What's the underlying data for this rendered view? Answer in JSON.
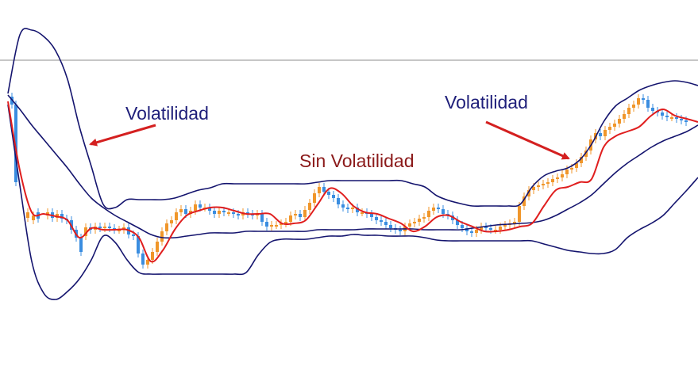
{
  "annotations": {
    "left": {
      "text": "Volatilidad"
    },
    "middle": {
      "text": "Sin Volatilidad"
    },
    "right": {
      "text": "Volatilidad"
    }
  },
  "colors": {
    "band": "#14146e",
    "moving_average": "#e01e1e",
    "candle_up": "#f0962a",
    "candle_down": "#3a8de0",
    "arrow": "#d42020",
    "price_line": "#8c8c8c"
  },
  "chart_data": {
    "type": "candlestick-with-bollinger-bands",
    "title": "",
    "xlabel": "",
    "ylabel": "",
    "grid": false,
    "horizontal_reference_line": true,
    "ylim": [
      0,
      462
    ],
    "x": [
      10,
      25,
      40,
      55,
      70,
      85,
      100,
      115,
      130,
      145,
      160,
      175,
      190,
      205,
      220,
      235,
      250,
      265,
      280,
      295,
      310,
      325,
      340,
      355,
      370,
      385,
      400,
      415,
      430,
      445,
      460,
      475,
      490,
      505,
      520,
      535,
      550,
      565,
      580,
      595,
      610,
      625,
      640,
      655,
      670,
      685,
      700,
      715,
      730,
      745,
      760,
      775,
      790,
      805,
      820,
      835,
      850,
      865,
      879
    ],
    "series": [
      {
        "values": [
          128,
          215,
          268,
          270,
          273,
          278,
          300,
          288,
          290,
          290,
          290,
          300,
          330,
          316,
          290,
          272,
          266,
          262,
          262,
          266,
          270,
          270,
          270,
          282,
          282,
          278,
          258,
          238,
          244,
          260,
          268,
          270,
          276,
          282,
          292,
          286,
          274,
          272,
          280,
          286,
          292,
          292,
          290,
          286,
          282,
          260,
          240,
          236,
          230,
          226,
          186,
          172,
          166,
          160,
          146,
          138,
          146,
          150,
          154
        ]
      },
      {
        "values": [
          120,
          138,
          158,
          176,
          194,
          212,
          232,
          250,
          262,
          272,
          280,
          288,
          296,
          300,
          300,
          298,
          296,
          294,
          294,
          294,
          292,
          292,
          292,
          292,
          292,
          292,
          290,
          290,
          290,
          290,
          289,
          289,
          289,
          289,
          289,
          290,
          290,
          290,
          290,
          288,
          286,
          284,
          283,
          282,
          281,
          278,
          272,
          264,
          256,
          246,
          232,
          218,
          206,
          196,
          186,
          178,
          172,
          166,
          158
        ]
      },
      {
        "values": [
          118,
          44,
          38,
          46,
          64,
          100,
          160,
          210,
          258,
          262,
          252,
          252,
          252,
          252,
          250,
          245,
          240,
          237,
          232,
          232,
          232,
          232,
          232,
          232,
          232,
          232,
          230,
          228,
          228,
          228,
          228,
          228,
          228,
          228,
          232,
          236,
          247,
          253,
          257,
          260,
          260,
          260,
          260,
          258,
          236,
          222,
          216,
          212,
          202,
          182,
          154,
          134,
          124,
          114,
          108,
          104,
          102,
          104,
          108
        ]
      },
      {
        "values": [
          132,
          234,
          330,
          370,
          378,
          368,
          352,
          328,
          298,
          306,
          328,
          344,
          346,
          346,
          346,
          346,
          346,
          346,
          346,
          346,
          344,
          322,
          306,
          302,
          302,
          302,
          300,
          298,
          298,
          296,
          297,
          297,
          298,
          298,
          298,
          300,
          303,
          304,
          304,
          304,
          304,
          304,
          304,
          304,
          304,
          308,
          312,
          316,
          318,
          320,
          320,
          315,
          300,
          290,
          282,
          272,
          256,
          240,
          224
        ]
      }
    ],
    "candles": {
      "x": [
        15,
        20,
        35,
        42,
        48,
        60,
        66,
        72,
        78,
        84,
        90,
        96,
        102,
        108,
        114,
        120,
        126,
        132,
        138,
        144,
        150,
        156,
        162,
        168,
        174,
        180,
        186,
        192,
        198,
        204,
        210,
        216,
        222,
        228,
        234,
        240,
        246,
        252,
        258,
        264,
        270,
        276,
        282,
        288,
        294,
        300,
        306,
        312,
        318,
        324,
        330,
        336,
        342,
        348,
        354,
        360,
        366,
        372,
        378,
        384,
        390,
        396,
        402,
        408,
        414,
        420,
        426,
        432,
        438,
        444,
        450,
        456,
        462,
        468,
        474,
        480,
        486,
        492,
        498,
        504,
        510,
        516,
        522,
        528,
        534,
        540,
        546,
        552,
        558,
        564,
        570,
        576,
        582,
        588,
        594,
        600,
        606,
        612,
        618,
        624,
        630,
        636,
        642,
        648,
        654,
        660,
        666,
        672,
        678,
        684,
        690,
        696,
        702,
        708,
        714,
        720,
        726,
        732,
        738,
        744,
        750,
        756,
        762,
        768,
        774,
        780,
        786,
        792,
        798,
        804,
        810,
        816,
        822,
        828,
        834,
        840,
        846,
        852,
        858,
        864
      ],
      "open": [
        122,
        132,
        275,
        278,
        268,
        272,
        268,
        275,
        270,
        276,
        278,
        290,
        300,
        298,
        287,
        290,
        286,
        288,
        286,
        288,
        290,
        290,
        287,
        296,
        298,
        320,
        334,
        328,
        318,
        305,
        292,
        282,
        278,
        268,
        264,
        270,
        266,
        258,
        262,
        262,
        266,
        270,
        266,
        268,
        268,
        270,
        272,
        268,
        270,
        272,
        270,
        280,
        286,
        284,
        284,
        282,
        280,
        272,
        270,
        274,
        265,
        256,
        244,
        236,
        242,
        246,
        250,
        258,
        262,
        264,
        262,
        268,
        268,
        270,
        274,
        278,
        280,
        284,
        288,
        290,
        292,
        286,
        282,
        280,
        276,
        274,
        266,
        262,
        264,
        270,
        272,
        278,
        284,
        288,
        292,
        294,
        290,
        286,
        288,
        290,
        290,
        286,
        284,
        282,
        280,
        260,
        248,
        240,
        236,
        234,
        232,
        230,
        226,
        224,
        220,
        214,
        212,
        206,
        198,
        190,
        176,
        168,
        172,
        164,
        160,
        156,
        150,
        144,
        136,
        132,
        124,
        126,
        136,
        140,
        142,
        146,
        148,
        148,
        150,
        152
      ],
      "close": [
        132,
        230,
        268,
        272,
        276,
        268,
        275,
        270,
        276,
        278,
        290,
        300,
        318,
        287,
        290,
        286,
        288,
        286,
        288,
        290,
        290,
        287,
        296,
        298,
        320,
        334,
        328,
        318,
        305,
        292,
        282,
        278,
        268,
        264,
        270,
        266,
        258,
        262,
        262,
        266,
        270,
        266,
        268,
        268,
        270,
        272,
        268,
        270,
        272,
        270,
        280,
        286,
        284,
        284,
        282,
        280,
        272,
        270,
        274,
        265,
        256,
        244,
        236,
        242,
        246,
        250,
        258,
        262,
        264,
        262,
        268,
        268,
        270,
        274,
        278,
        280,
        284,
        288,
        290,
        292,
        286,
        282,
        280,
        276,
        274,
        266,
        262,
        264,
        270,
        272,
        278,
        284,
        288,
        292,
        294,
        290,
        286,
        288,
        290,
        290,
        286,
        284,
        282,
        280,
        260,
        248,
        240,
        236,
        234,
        232,
        230,
        226,
        224,
        220,
        214,
        212,
        206,
        198,
        190,
        176,
        168,
        172,
        164,
        160,
        156,
        150,
        144,
        136,
        132,
        124,
        126,
        136,
        140,
        142,
        146,
        148,
        148,
        150,
        152,
        154
      ]
    }
  }
}
